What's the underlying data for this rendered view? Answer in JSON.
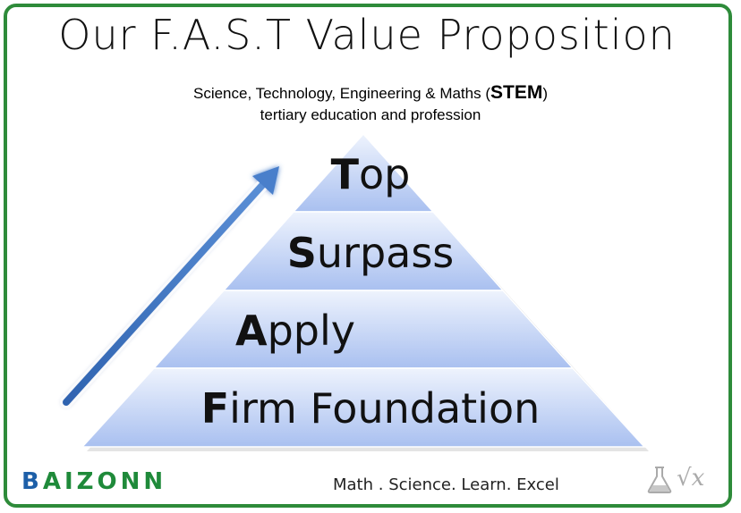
{
  "title": "Our F.A.S.T Value Proposition",
  "subtitle": {
    "line1_prefix": "Science, Technology, Engineering & Maths (",
    "line1_stem": "STEM",
    "line1_suffix": ")",
    "line2": "tertiary education and profession"
  },
  "pyramid": {
    "tiers": [
      {
        "initial": "T",
        "rest": "op"
      },
      {
        "initial": "S",
        "rest": "urpass"
      },
      {
        "initial": "A",
        "rest": "pply"
      },
      {
        "initial": "F",
        "rest": "irm Foundation"
      }
    ]
  },
  "footer": {
    "brand_first": "B",
    "brand_rest": "AIZONN",
    "tagline": "Math . Science. Learn. Excel",
    "math_symbol": "√x"
  },
  "colors": {
    "frame": "#2e8b3a",
    "pyramid_light": "#dfe8fb",
    "pyramid_dark": "#9fb8ef",
    "arrow": "#3f77c4",
    "brand_blue": "#1d5fa8",
    "brand_green": "#1f8a3a"
  }
}
